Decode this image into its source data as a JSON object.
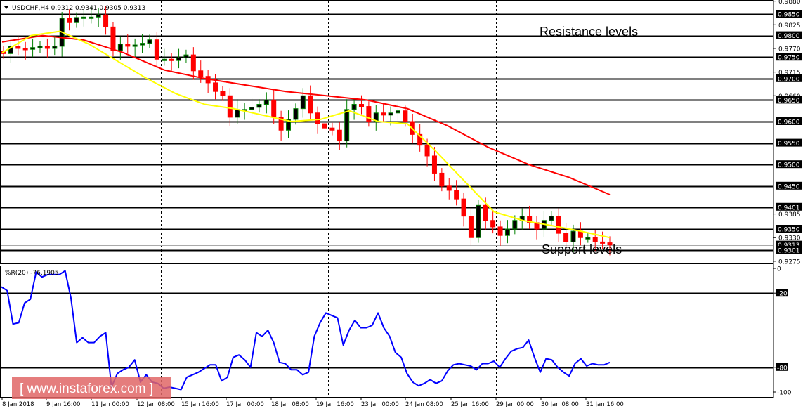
{
  "header": {
    "menu_icon": "triangle-down-icon",
    "symbol": "USDCHF,H4",
    "ohlc": "0.9312 0.9341 0.9305 0.9313"
  },
  "annotations": {
    "resistance_label": "Resistance levels",
    "support_label": "Support levels"
  },
  "indicator": {
    "label": "%R(20) -76.1905",
    "axis_ticks": [
      "0",
      "-20",
      "-80",
      "-100"
    ],
    "levels": [
      -20,
      -80
    ]
  },
  "watermark": {
    "text": "[ www.instaforex.com ]",
    "bg_color": "#e06666"
  },
  "price_axis": {
    "plain_ticks": [
      "0.9880",
      "0.9825",
      "0.9770",
      "0.9715",
      "0.9660",
      "0.9385",
      "0.9330",
      "0.9275"
    ],
    "boxed_labels": [
      "0.9850",
      "0.9800",
      "0.9750",
      "0.9700",
      "0.9650",
      "0.9600",
      "0.9550",
      "0.9500",
      "0.9450",
      "0.9401",
      "0.9350",
      "0.9313",
      "0.9301"
    ]
  },
  "time_axis": [
    "8 Jan 2018",
    "9 Jan 16:00",
    "11 Jan 00:00",
    "12 Jan 08:00",
    "15 Jan 16:00",
    "17 Jan 00:00",
    "18 Jan 08:00",
    "19 Jan 16:00",
    "23 Jan 00:00",
    "24 Jan 08:00",
    "25 Jan 16:00",
    "29 Jan 00:00",
    "30 Jan 08:00",
    "31 Jan 16:00"
  ],
  "colors": {
    "bull_candle": "#008000",
    "bear_candle": "#ff0000",
    "ma_fast": "#ffff00",
    "ma_slow": "#ff0000",
    "wpr_line": "#0000ff",
    "level_line": "#000000"
  },
  "chart_data": [
    {
      "type": "candlestick",
      "title": "USDCHF,H4 0.9312 0.9341 0.9305 0.9313",
      "xlabel": "",
      "ylabel": "",
      "ylim": [
        0.9265,
        0.989
      ],
      "grid": "vertical dashed",
      "horizontal_levels": [
        0.985,
        0.98,
        0.975,
        0.97,
        0.965,
        0.96,
        0.955,
        0.95,
        0.945,
        0.9401,
        0.935,
        0.9301
      ],
      "last_price": 0.9313,
      "x_ticks": [
        "8 Jan 2018",
        "9 Jan 16:00",
        "11 Jan 00:00",
        "12 Jan 08:00",
        "15 Jan 16:00",
        "17 Jan 00:00",
        "18 Jan 08:00",
        "19 Jan 16:00",
        "23 Jan 00:00",
        "24 Jan 08:00",
        "25 Jan 16:00",
        "29 Jan 00:00",
        "30 Jan 08:00",
        "31 Jan 16:00"
      ],
      "series": [
        {
          "name": "Close (approx.)",
          "values": [
            0.9758,
            0.9775,
            0.977,
            0.9768,
            0.9772,
            0.9775,
            0.977,
            0.9775,
            0.984,
            0.983,
            0.9842,
            0.9843,
            0.9843,
            0.9848,
            0.982,
            0.9765,
            0.978,
            0.9775,
            0.9778,
            0.9782,
            0.979,
            0.9745,
            0.9745,
            0.9742,
            0.9748,
            0.9755,
            0.9718,
            0.9705,
            0.969,
            0.967,
            0.966,
            0.961,
            0.9628,
            0.9628,
            0.9633,
            0.964,
            0.965,
            0.961,
            0.958,
            0.9605,
            0.963,
            0.966,
            0.962,
            0.9595,
            0.9585,
            0.958,
            0.9555,
            0.9628,
            0.964,
            0.9635,
            0.96,
            0.962,
            0.9615,
            0.962,
            0.9625,
            0.96,
            0.957,
            0.9545,
            0.952,
            0.948,
            0.945,
            0.944,
            0.942,
            0.938,
            0.933,
            0.9405,
            0.937,
            0.9355,
            0.9335,
            0.935,
            0.937,
            0.938,
            0.9365,
            0.935,
            0.937,
            0.938,
            0.934,
            0.932,
            0.9345,
            0.933,
            0.933,
            0.932,
            0.9318,
            0.9313
          ]
        },
        {
          "name": "MA fast (yellow)",
          "values": [
            0.976,
            0.98,
            0.981,
            0.978,
            0.974,
            0.97,
            0.9665,
            0.964,
            0.963,
            0.9615,
            0.96,
            0.9605,
            0.9625,
            0.96,
            0.9595,
            0.953,
            0.946,
            0.939,
            0.937,
            0.9358,
            0.9345,
            0.933
          ]
        },
        {
          "name": "MA slow (red)",
          "values": [
            0.9785,
            0.98,
            0.979,
            0.976,
            0.972,
            0.97,
            0.9685,
            0.967,
            0.966,
            0.965,
            0.963,
            0.959,
            0.954,
            0.95,
            0.947,
            0.943
          ]
        }
      ]
    },
    {
      "type": "line",
      "title": "%R(20) -76.1905",
      "ylim": [
        -100,
        0
      ],
      "levels": [
        -20,
        -80
      ],
      "series": [
        {
          "name": "%R(20)",
          "values": [
            -15,
            -18,
            -45,
            -44,
            -28,
            -25,
            -3,
            -7,
            -5,
            -5,
            -5,
            -2,
            -24,
            -60,
            -56,
            -60,
            -60,
            -55,
            -52,
            -96,
            -85,
            -82,
            -80,
            -74,
            -92,
            -86,
            -92,
            -93,
            -97,
            -96,
            -97,
            -98,
            -88,
            -86,
            -84,
            -81,
            -78,
            -78,
            -91,
            -88,
            -72,
            -70,
            -74,
            -80,
            -52,
            -55,
            -50,
            -60,
            -76,
            -77,
            -82,
            -82,
            -86,
            -84,
            -55,
            -44,
            -36,
            -38,
            -40,
            -62,
            -50,
            -42,
            -48,
            -48,
            -46,
            -36,
            -48,
            -55,
            -68,
            -72,
            -85,
            -92,
            -95,
            -93,
            -90,
            -93,
            -91,
            -83,
            -78,
            -77,
            -78,
            -79,
            -82,
            -77,
            -77,
            -75,
            -80,
            -73,
            -67,
            -65,
            -64,
            -58,
            -72,
            -84,
            -73,
            -74,
            -80,
            -84,
            -87,
            -77,
            -73,
            -79,
            -77,
            -78,
            -78,
            -76
          ]
        }
      ]
    }
  ]
}
